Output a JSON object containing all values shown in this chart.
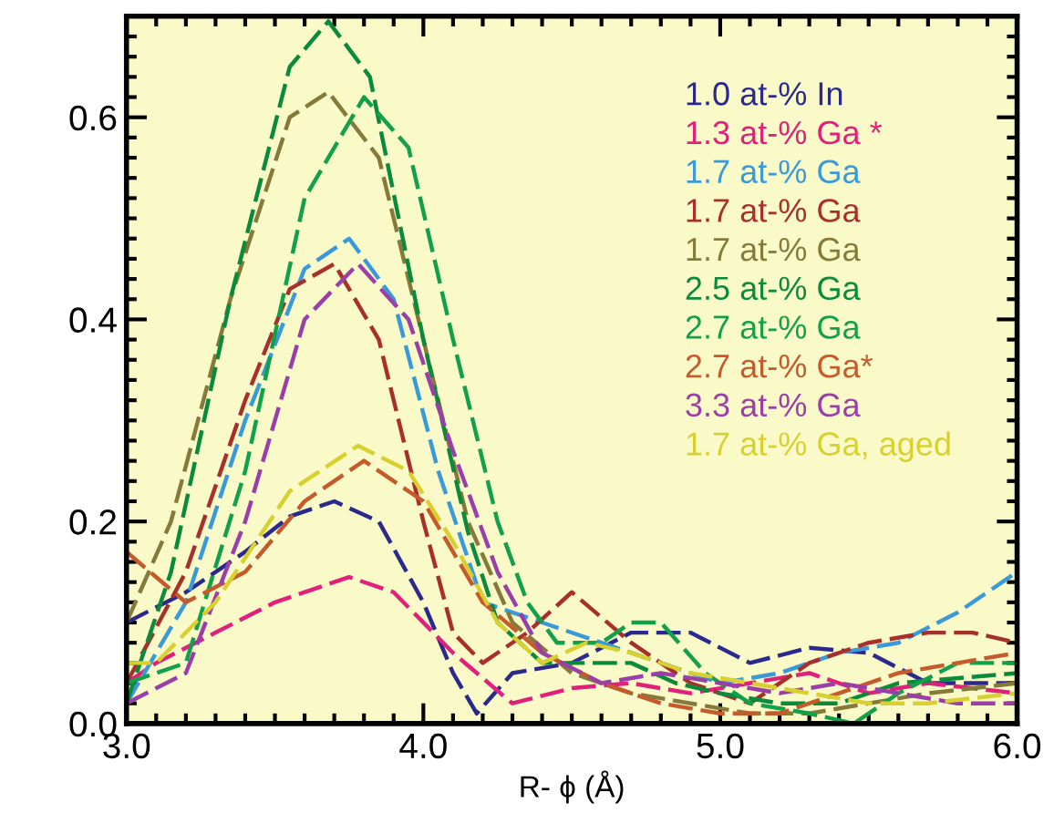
{
  "chart_data": {
    "type": "line",
    "xlabel": "R- ϕ (Å)",
    "xlim": [
      3.0,
      6.0
    ],
    "ylim": [
      0.0,
      0.7
    ],
    "xticks": [
      {
        "value": 3,
        "label": "3.0"
      },
      {
        "value": 4,
        "label": "4.0"
      },
      {
        "value": 5,
        "label": "5.0"
      },
      {
        "value": 6,
        "label": "6.0"
      }
    ],
    "yticks": [
      {
        "value": 0,
        "label": "0.0"
      },
      0.2,
      0.4,
      0.6
    ],
    "grid": false,
    "legend": "top right",
    "line_style": "dashed",
    "marker": "none",
    "series": [
      {
        "name": "1.0 at-% In",
        "color": "#2b2a8c",
        "x": [
          3.0,
          3.2,
          3.4,
          3.55,
          3.7,
          3.85,
          4.0,
          4.1,
          4.18,
          4.3,
          4.5,
          4.7,
          4.9,
          5.1,
          5.3,
          5.5,
          5.7,
          6.0
        ],
        "values": [
          0.1,
          0.13,
          0.17,
          0.205,
          0.22,
          0.2,
          0.12,
          0.05,
          0.01,
          0.05,
          0.06,
          0.09,
          0.09,
          0.06,
          0.075,
          0.07,
          0.04,
          0.04
        ]
      },
      {
        "name": "1.3 at-% Ga *",
        "color": "#e0207a",
        "x": [
          3.0,
          3.1,
          3.3,
          3.5,
          3.75,
          3.9,
          4.1,
          4.3,
          4.5,
          4.7,
          4.9,
          5.1,
          5.3,
          5.5,
          5.7,
          6.0
        ],
        "values": [
          0.04,
          0.06,
          0.09,
          0.12,
          0.145,
          0.13,
          0.07,
          0.02,
          0.035,
          0.04,
          0.03,
          0.04,
          0.05,
          0.03,
          0.04,
          0.03
        ]
      },
      {
        "name": "1.7 at-% Ga",
        "color": "#3a9ad9",
        "x": [
          3.0,
          3.2,
          3.4,
          3.6,
          3.75,
          3.9,
          4.05,
          4.2,
          4.4,
          4.6,
          4.8,
          5.0,
          5.2,
          5.4,
          5.6,
          5.8,
          6.0
        ],
        "values": [
          0.02,
          0.12,
          0.3,
          0.45,
          0.48,
          0.42,
          0.25,
          0.12,
          0.1,
          0.08,
          0.06,
          0.04,
          0.05,
          0.07,
          0.08,
          0.11,
          0.15
        ]
      },
      {
        "name": "1.7 at-% Ga",
        "color": "#a8302c",
        "x": [
          3.0,
          3.2,
          3.4,
          3.55,
          3.7,
          3.85,
          4.0,
          4.1,
          4.2,
          4.35,
          4.5,
          4.7,
          4.9,
          5.1,
          5.3,
          5.5,
          5.7,
          5.85,
          6.0
        ],
        "values": [
          0.04,
          0.15,
          0.32,
          0.43,
          0.455,
          0.38,
          0.2,
          0.09,
          0.06,
          0.09,
          0.13,
          0.08,
          0.04,
          0.02,
          0.06,
          0.08,
          0.09,
          0.09,
          0.08
        ]
      },
      {
        "name": "1.7 at-% Ga",
        "color": "#857a3a",
        "x": [
          3.0,
          3.15,
          3.35,
          3.55,
          3.68,
          3.85,
          4.0,
          4.15,
          4.3,
          4.5,
          4.7,
          4.9,
          5.1,
          5.3,
          5.5,
          5.7,
          6.0
        ],
        "values": [
          0.1,
          0.2,
          0.42,
          0.6,
          0.625,
          0.56,
          0.38,
          0.2,
          0.1,
          0.05,
          0.03,
          0.02,
          0.01,
          0.01,
          0.02,
          0.03,
          0.04
        ]
      },
      {
        "name": "2.5 at-% Ga",
        "color": "#0a8a3a",
        "x": [
          3.0,
          3.15,
          3.35,
          3.55,
          3.68,
          3.82,
          4.0,
          4.15,
          4.25,
          4.4,
          4.55,
          4.7,
          4.85,
          5.0,
          5.2,
          5.4,
          5.6,
          6.0
        ],
        "values": [
          0.02,
          0.15,
          0.42,
          0.65,
          0.695,
          0.64,
          0.38,
          0.19,
          0.1,
          0.06,
          0.06,
          0.06,
          0.04,
          0.03,
          0.02,
          0.02,
          0.04,
          0.05
        ]
      },
      {
        "name": "2.7 at-% Ga",
        "color": "#12a04a",
        "x": [
          3.0,
          3.2,
          3.4,
          3.6,
          3.8,
          3.95,
          4.1,
          4.25,
          4.35,
          4.45,
          4.6,
          4.7,
          4.8,
          4.95,
          5.1,
          5.3,
          5.45,
          5.6,
          5.8,
          6.0
        ],
        "values": [
          0.04,
          0.06,
          0.25,
          0.52,
          0.62,
          0.57,
          0.38,
          0.2,
          0.12,
          0.08,
          0.08,
          0.1,
          0.1,
          0.05,
          0.02,
          0.01,
          0.0,
          0.03,
          0.06,
          0.06
        ]
      },
      {
        "name": "2.7 at-% Ga*",
        "color": "#c55a2a",
        "x": [
          3.0,
          3.2,
          3.4,
          3.6,
          3.8,
          4.0,
          4.2,
          4.4,
          4.6,
          4.8,
          5.0,
          5.2,
          5.4,
          5.6,
          5.8,
          6.0
        ],
        "values": [
          0.17,
          0.12,
          0.15,
          0.22,
          0.26,
          0.22,
          0.12,
          0.07,
          0.04,
          0.02,
          0.01,
          0.01,
          0.03,
          0.05,
          0.06,
          0.07
        ]
      },
      {
        "name": "3.3 at-% Ga",
        "color": "#9b3fa8",
        "x": [
          3.0,
          3.2,
          3.4,
          3.6,
          3.78,
          3.95,
          4.1,
          4.25,
          4.4,
          4.6,
          4.8,
          5.0,
          5.2,
          5.4,
          5.6,
          5.8,
          6.0
        ],
        "values": [
          0.02,
          0.05,
          0.2,
          0.4,
          0.455,
          0.4,
          0.27,
          0.15,
          0.07,
          0.04,
          0.05,
          0.04,
          0.03,
          0.04,
          0.03,
          0.02,
          0.02
        ]
      },
      {
        "name": "1.7 at-% Ga, aged",
        "color": "#d8d030",
        "x": [
          3.0,
          3.1,
          3.3,
          3.55,
          3.78,
          3.95,
          4.1,
          4.25,
          4.4,
          4.55,
          4.7,
          4.9,
          5.1,
          5.3,
          5.5,
          5.7,
          6.0
        ],
        "values": [
          0.06,
          0.06,
          0.12,
          0.23,
          0.275,
          0.25,
          0.18,
          0.1,
          0.06,
          0.08,
          0.07,
          0.05,
          0.04,
          0.03,
          0.02,
          0.02,
          0.03
        ]
      }
    ]
  }
}
